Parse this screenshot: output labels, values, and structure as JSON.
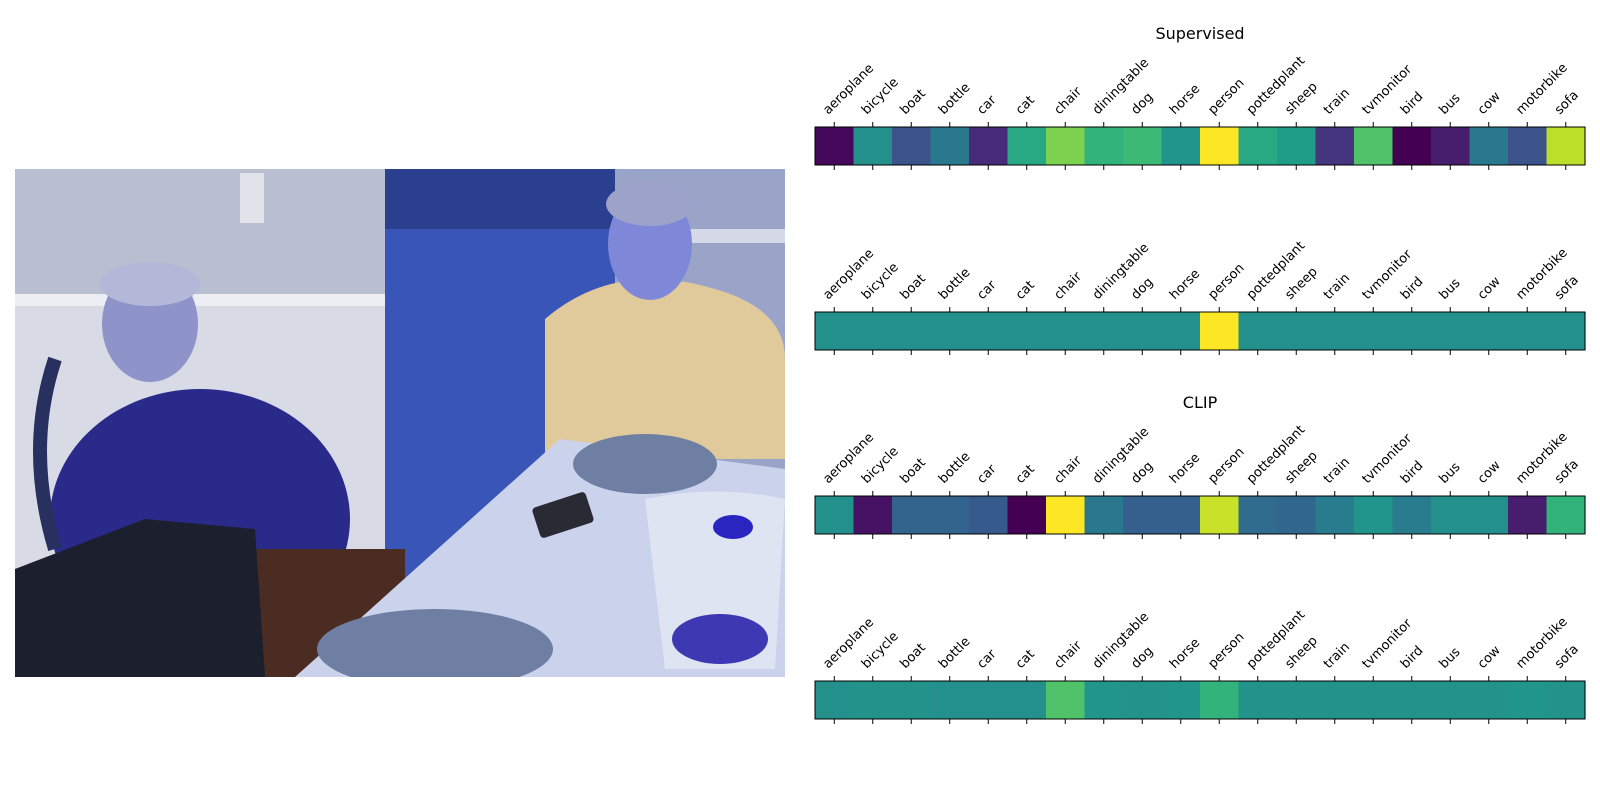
{
  "chart_data": [
    {
      "type": "heatmap",
      "title": "Supervised",
      "categories": [
        "aeroplane",
        "bicycle",
        "boat",
        "bottle",
        "car",
        "cat",
        "chair",
        "diningtable",
        "dog",
        "horse",
        "person",
        "pottedplant",
        "sheep",
        "train",
        "tvmonitor",
        "bird",
        "bus",
        "cow",
        "motorbike",
        "sofa"
      ],
      "values": [
        0.02,
        0.5,
        0.25,
        0.4,
        0.12,
        0.6,
        0.8,
        0.65,
        0.68,
        0.52,
        1.0,
        0.6,
        0.55,
        0.15,
        0.72,
        0.0,
        0.08,
        0.4,
        0.25,
        0.9
      ],
      "colormap": "viridis"
    },
    {
      "type": "heatmap",
      "title": "",
      "categories": [
        "aeroplane",
        "bicycle",
        "boat",
        "bottle",
        "car",
        "cat",
        "chair",
        "diningtable",
        "dog",
        "horse",
        "person",
        "pottedplant",
        "sheep",
        "train",
        "tvmonitor",
        "bird",
        "bus",
        "cow",
        "motorbike",
        "sofa"
      ],
      "values": [
        0.5,
        0.5,
        0.5,
        0.5,
        0.5,
        0.5,
        0.5,
        0.5,
        0.5,
        0.5,
        1.0,
        0.5,
        0.5,
        0.5,
        0.5,
        0.5,
        0.5,
        0.5,
        0.5,
        0.5
      ],
      "colormap": "viridis"
    },
    {
      "type": "heatmap",
      "title": "CLIP",
      "categories": [
        "aeroplane",
        "bicycle",
        "boat",
        "bottle",
        "car",
        "cat",
        "chair",
        "diningtable",
        "dog",
        "horse",
        "person",
        "pottedplant",
        "sheep",
        "train",
        "tvmonitor",
        "bird",
        "bus",
        "cow",
        "motorbike",
        "sofa"
      ],
      "values": [
        0.5,
        0.05,
        0.32,
        0.32,
        0.28,
        0.0,
        1.0,
        0.4,
        0.3,
        0.3,
        0.92,
        0.35,
        0.33,
        0.42,
        0.52,
        0.42,
        0.5,
        0.5,
        0.08,
        0.65
      ],
      "colormap": "viridis"
    },
    {
      "type": "heatmap",
      "title": "",
      "categories": [
        "aeroplane",
        "bicycle",
        "boat",
        "bottle",
        "car",
        "cat",
        "chair",
        "diningtable",
        "dog",
        "horse",
        "person",
        "pottedplant",
        "sheep",
        "train",
        "tvmonitor",
        "bird",
        "bus",
        "cow",
        "motorbike",
        "sofa"
      ],
      "values": [
        0.5,
        0.51,
        0.51,
        0.5,
        0.5,
        0.5,
        0.72,
        0.52,
        0.51,
        0.52,
        0.65,
        0.51,
        0.51,
        0.51,
        0.51,
        0.51,
        0.51,
        0.51,
        0.52,
        0.51
      ],
      "colormap": "viridis"
    }
  ]
}
